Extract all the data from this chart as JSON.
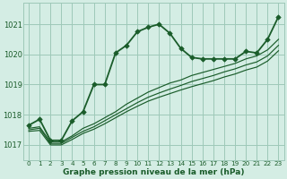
{
  "background_color": "#d4ede4",
  "grid_color": "#9ec8b8",
  "line_color": "#1a5c2a",
  "text_color": "#1a5c2a",
  "xlabel": "Graphe pression niveau de la mer (hPa)",
  "xlim": [
    -0.5,
    23.5
  ],
  "ylim": [
    1016.5,
    1021.7
  ],
  "yticks": [
    1017,
    1018,
    1019,
    1020,
    1021
  ],
  "xticks": [
    0,
    1,
    2,
    3,
    4,
    5,
    6,
    7,
    8,
    9,
    10,
    11,
    12,
    13,
    14,
    15,
    16,
    17,
    18,
    19,
    20,
    21,
    22,
    23
  ],
  "series_main": [
    1017.65,
    1017.85,
    1017.15,
    1017.15,
    1017.8,
    1018.1,
    1019.0,
    1019.0,
    1020.05,
    1020.3,
    1020.75,
    1020.9,
    1021.0,
    1020.7,
    1020.2,
    1019.9,
    1019.85,
    1019.85,
    1019.85,
    1019.85,
    1020.1,
    1020.05,
    1020.5,
    1021.25
  ],
  "series_lines": [
    [
      1017.55,
      1017.6,
      1017.1,
      1017.1,
      1017.3,
      1017.55,
      1017.7,
      1017.9,
      1018.1,
      1018.35,
      1018.55,
      1018.75,
      1018.9,
      1019.05,
      1019.15,
      1019.3,
      1019.4,
      1019.5,
      1019.6,
      1019.7,
      1019.85,
      1019.95,
      1020.15,
      1020.5
    ],
    [
      1017.5,
      1017.55,
      1017.05,
      1017.05,
      1017.25,
      1017.45,
      1017.6,
      1017.8,
      1018.0,
      1018.2,
      1018.4,
      1018.58,
      1018.72,
      1018.85,
      1018.97,
      1019.1,
      1019.2,
      1019.3,
      1019.42,
      1019.52,
      1019.65,
      1019.75,
      1019.95,
      1020.3
    ],
    [
      1017.45,
      1017.48,
      1017.0,
      1017.0,
      1017.18,
      1017.38,
      1017.52,
      1017.7,
      1017.9,
      1018.1,
      1018.28,
      1018.45,
      1018.58,
      1018.7,
      1018.82,
      1018.93,
      1019.03,
      1019.13,
      1019.25,
      1019.35,
      1019.48,
      1019.58,
      1019.78,
      1020.12
    ]
  ],
  "marker": "D",
  "markersize": 2.8,
  "linewidth_main": 1.3,
  "linewidth_lines": 0.85
}
